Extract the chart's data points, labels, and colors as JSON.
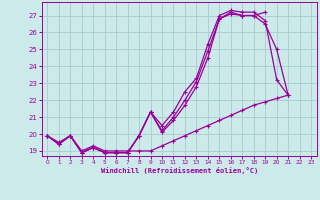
{
  "background_color": "#cceaea",
  "grid_color": "#aacccc",
  "line_color": "#990099",
  "xlabel": "Windchill (Refroidissement éolien,°C)",
  "xlim": [
    -0.5,
    23.5
  ],
  "ylim": [
    18.7,
    27.8
  ],
  "yticks": [
    19,
    20,
    21,
    22,
    23,
    24,
    25,
    26,
    27
  ],
  "xticks": [
    0,
    1,
    2,
    3,
    4,
    5,
    6,
    7,
    8,
    9,
    10,
    11,
    12,
    13,
    14,
    15,
    16,
    17,
    18,
    19,
    20,
    21,
    22,
    23
  ],
  "series": [
    {
      "x": [
        0,
        1,
        2,
        3,
        4,
        5,
        6,
        7,
        8,
        9,
        10,
        11,
        12,
        13,
        14,
        15,
        16,
        17,
        18,
        19,
        20,
        21
      ],
      "y": [
        19.9,
        19.4,
        19.9,
        18.9,
        19.2,
        18.9,
        18.9,
        18.9,
        19.9,
        21.3,
        20.5,
        21.3,
        22.5,
        23.3,
        25.3,
        27.0,
        27.3,
        27.2,
        27.2,
        26.7,
        23.2,
        22.3
      ]
    },
    {
      "x": [
        0,
        1,
        2,
        3,
        4,
        5,
        6,
        7,
        8,
        9,
        10,
        11,
        12,
        13,
        14,
        15,
        16,
        17,
        18,
        19,
        20,
        21
      ],
      "y": [
        19.9,
        19.4,
        19.9,
        18.9,
        19.2,
        18.9,
        18.9,
        18.9,
        19.9,
        21.3,
        20.2,
        21.0,
        22.0,
        23.1,
        24.9,
        26.8,
        27.1,
        27.0,
        27.0,
        26.5,
        25.0,
        22.3
      ]
    },
    {
      "x": [
        0,
        1,
        2,
        3,
        4,
        5,
        6,
        7,
        8,
        9,
        10,
        11,
        12,
        13,
        14,
        15,
        16,
        17,
        18,
        19
      ],
      "y": [
        19.9,
        19.4,
        19.9,
        18.9,
        19.2,
        18.9,
        18.9,
        18.9,
        19.9,
        21.3,
        20.1,
        20.8,
        21.7,
        22.8,
        24.5,
        26.8,
        27.2,
        27.0,
        27.0,
        27.2
      ]
    },
    {
      "x": [
        0,
        1,
        2,
        3,
        4,
        5,
        6,
        7,
        8,
        9,
        10,
        11,
        12,
        13,
        14,
        15,
        16,
        17,
        18,
        19,
        20,
        21
      ],
      "y": [
        19.9,
        19.5,
        19.9,
        19.0,
        19.3,
        19.0,
        19.0,
        19.0,
        19.0,
        19.0,
        19.3,
        19.6,
        19.9,
        20.2,
        20.5,
        20.8,
        21.1,
        21.4,
        21.7,
        21.9,
        22.1,
        22.3
      ]
    }
  ]
}
